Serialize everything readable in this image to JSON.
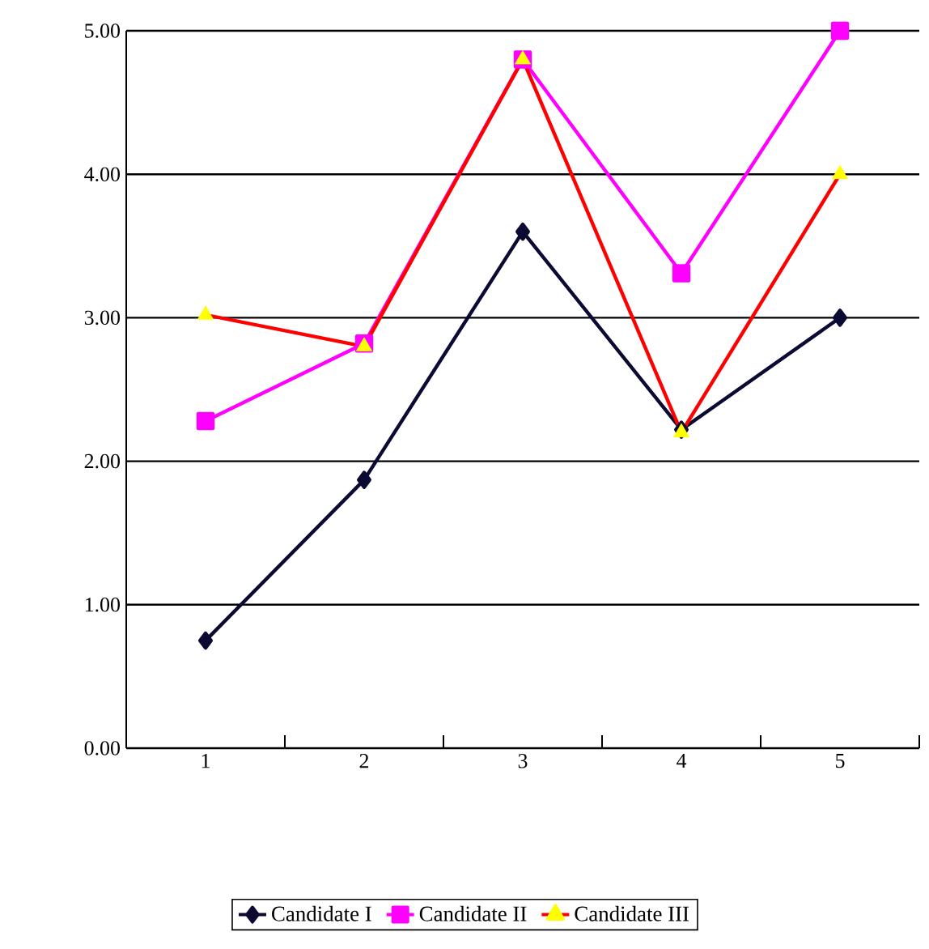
{
  "chart_data": {
    "type": "line",
    "categories": [
      "1",
      "2",
      "3",
      "4",
      "5"
    ],
    "series": [
      {
        "name": "Candidate I",
        "color": "#0a0a33",
        "marker": "diamond",
        "values": [
          0.75,
          1.87,
          3.6,
          2.22,
          3.0
        ]
      },
      {
        "name": "Candidate II",
        "color": "#ff00ff",
        "marker": "square",
        "values": [
          2.28,
          2.82,
          4.8,
          3.31,
          5.0
        ]
      },
      {
        "name": "Candidate III",
        "color": "#ff0000",
        "colors": [
          "#ffff00",
          "#ffff00",
          "#ffff00",
          "#ffff00",
          "#ffff00"
        ],
        "marker": "triangle",
        "values": [
          3.02,
          2.8,
          4.8,
          2.2,
          4.0
        ]
      }
    ],
    "ylim": [
      0,
      5
    ],
    "yticks": [
      {
        "value": 0,
        "label": "0.00"
      },
      {
        "value": 1,
        "label": "1.00"
      },
      {
        "value": 2,
        "label": "2.00"
      },
      {
        "value": 3,
        "label": "3.00"
      },
      {
        "value": 4,
        "label": "4.00"
      },
      {
        "value": 5,
        "label": "5.00"
      }
    ],
    "grid": "y",
    "legend": "bottom"
  }
}
